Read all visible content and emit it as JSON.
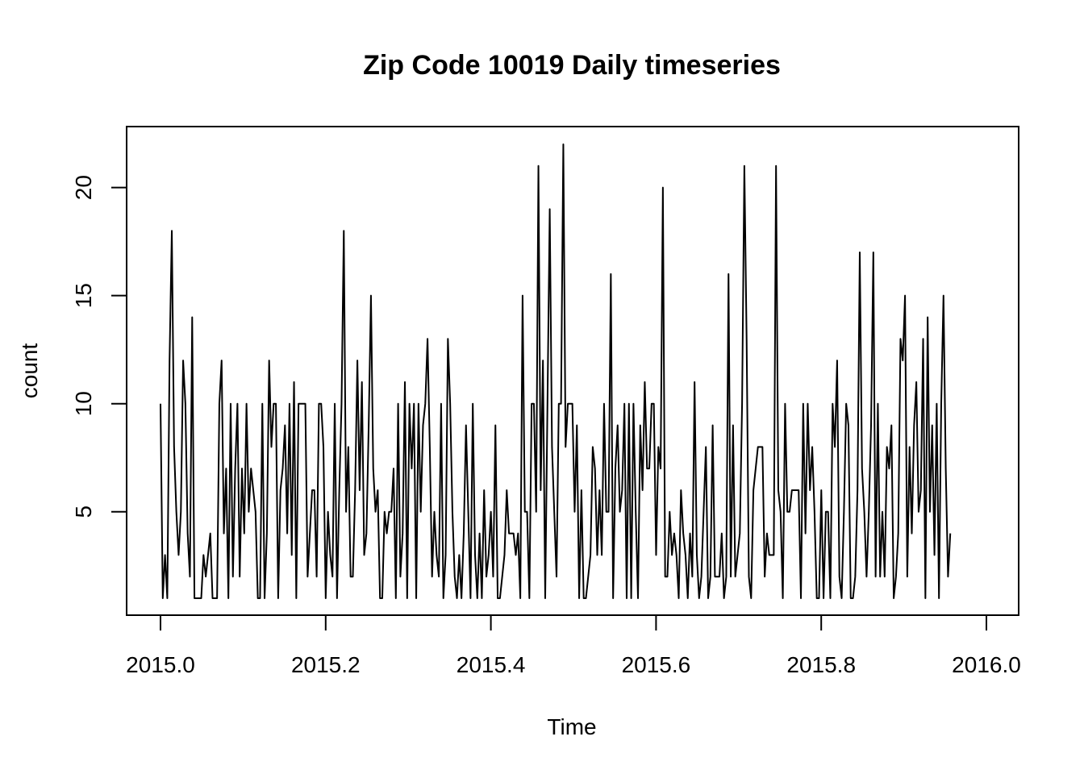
{
  "chart_data": {
    "type": "line",
    "title": "Zip Code 10019 Daily timeseries",
    "xlabel": "Time",
    "ylabel": "count",
    "xlim": [
      2015.0,
      2016.0
    ],
    "ylim": [
      0.5,
      22.5
    ],
    "x_start": 2015.0,
    "x_step": 0.00274,
    "x_ticks": [
      2015.0,
      2015.2,
      2015.4,
      2015.6,
      2015.8,
      2016.0
    ],
    "x_tick_labels": [
      "2015.0",
      "2015.2",
      "2015.4",
      "2015.6",
      "2015.8",
      "2016.0"
    ],
    "y_ticks": [
      5,
      10,
      15,
      20
    ],
    "y_tick_labels": [
      "5",
      "10",
      "15",
      "20"
    ],
    "grid": false,
    "line_color": "#000000",
    "series": [
      {
        "values": [
          10,
          1,
          3,
          1,
          12,
          18,
          8,
          5,
          3,
          5,
          12,
          10,
          4,
          2,
          14,
          1,
          1,
          1,
          1,
          3,
          2,
          3,
          4,
          1,
          1,
          1,
          10,
          12,
          4,
          7,
          1,
          10,
          2,
          7,
          10,
          2,
          7,
          4,
          10,
          5,
          7,
          6,
          5,
          1,
          1,
          10,
          1,
          4,
          12,
          8,
          10,
          10,
          1,
          6,
          7,
          9,
          4,
          10,
          3,
          11,
          1,
          10,
          10,
          10,
          10,
          2,
          4,
          6,
          6,
          2,
          10,
          10,
          8,
          1,
          5,
          3,
          2,
          10,
          1,
          6,
          10,
          18,
          5,
          8,
          2,
          2,
          6,
          12,
          6,
          11,
          3,
          4,
          9,
          15,
          7,
          5,
          6,
          1,
          1,
          5,
          4,
          5,
          5,
          7,
          1,
          10,
          2,
          4,
          11,
          1,
          10,
          7,
          10,
          1,
          10,
          5,
          9,
          10,
          13,
          8,
          2,
          5,
          3,
          2,
          10,
          1,
          3,
          13,
          10,
          5,
          2,
          1,
          3,
          1,
          4,
          9,
          5,
          1,
          10,
          3,
          1,
          4,
          1,
          6,
          2,
          3,
          5,
          2,
          9,
          1,
          1,
          2,
          3,
          6,
          4,
          4,
          4,
          3,
          4,
          1,
          15,
          5,
          5,
          1,
          10,
          10,
          5,
          21,
          6,
          12,
          1,
          10,
          19,
          8,
          5,
          2,
          10,
          10,
          22,
          8,
          10,
          10,
          10,
          5,
          9,
          1,
          6,
          1,
          1,
          2,
          3,
          8,
          7,
          3,
          6,
          3,
          10,
          5,
          5,
          16,
          1,
          7,
          9,
          5,
          6,
          10,
          1,
          10,
          1,
          10,
          5,
          1,
          9,
          6,
          11,
          7,
          7,
          10,
          10,
          3,
          8,
          7,
          20,
          2,
          2,
          5,
          3,
          4,
          3,
          1,
          6,
          4,
          3,
          1,
          4,
          2,
          11,
          3,
          1,
          2,
          5,
          8,
          1,
          2,
          9,
          2,
          2,
          2,
          4,
          1,
          2,
          16,
          2,
          9,
          2,
          3,
          4,
          10,
          21,
          13,
          2,
          1,
          6,
          7,
          8,
          8,
          8,
          2,
          4,
          3,
          3,
          3,
          21,
          6,
          5,
          1,
          10,
          5,
          5,
          6,
          6,
          6,
          6,
          1,
          10,
          4,
          10,
          6,
          8,
          5,
          1,
          1,
          6,
          1,
          5,
          5,
          1,
          10,
          8,
          12,
          2,
          1,
          5,
          10,
          9,
          1,
          1,
          2,
          6,
          17,
          7,
          5,
          2,
          5,
          9,
          17,
          2,
          10,
          2,
          5,
          2,
          8,
          7,
          9,
          1,
          2,
          4,
          13,
          12,
          15,
          2,
          8,
          4,
          9,
          11,
          5,
          6,
          13,
          1,
          14,
          5,
          9,
          3,
          10,
          1,
          10,
          15,
          7,
          2,
          4
        ]
      }
    ]
  }
}
